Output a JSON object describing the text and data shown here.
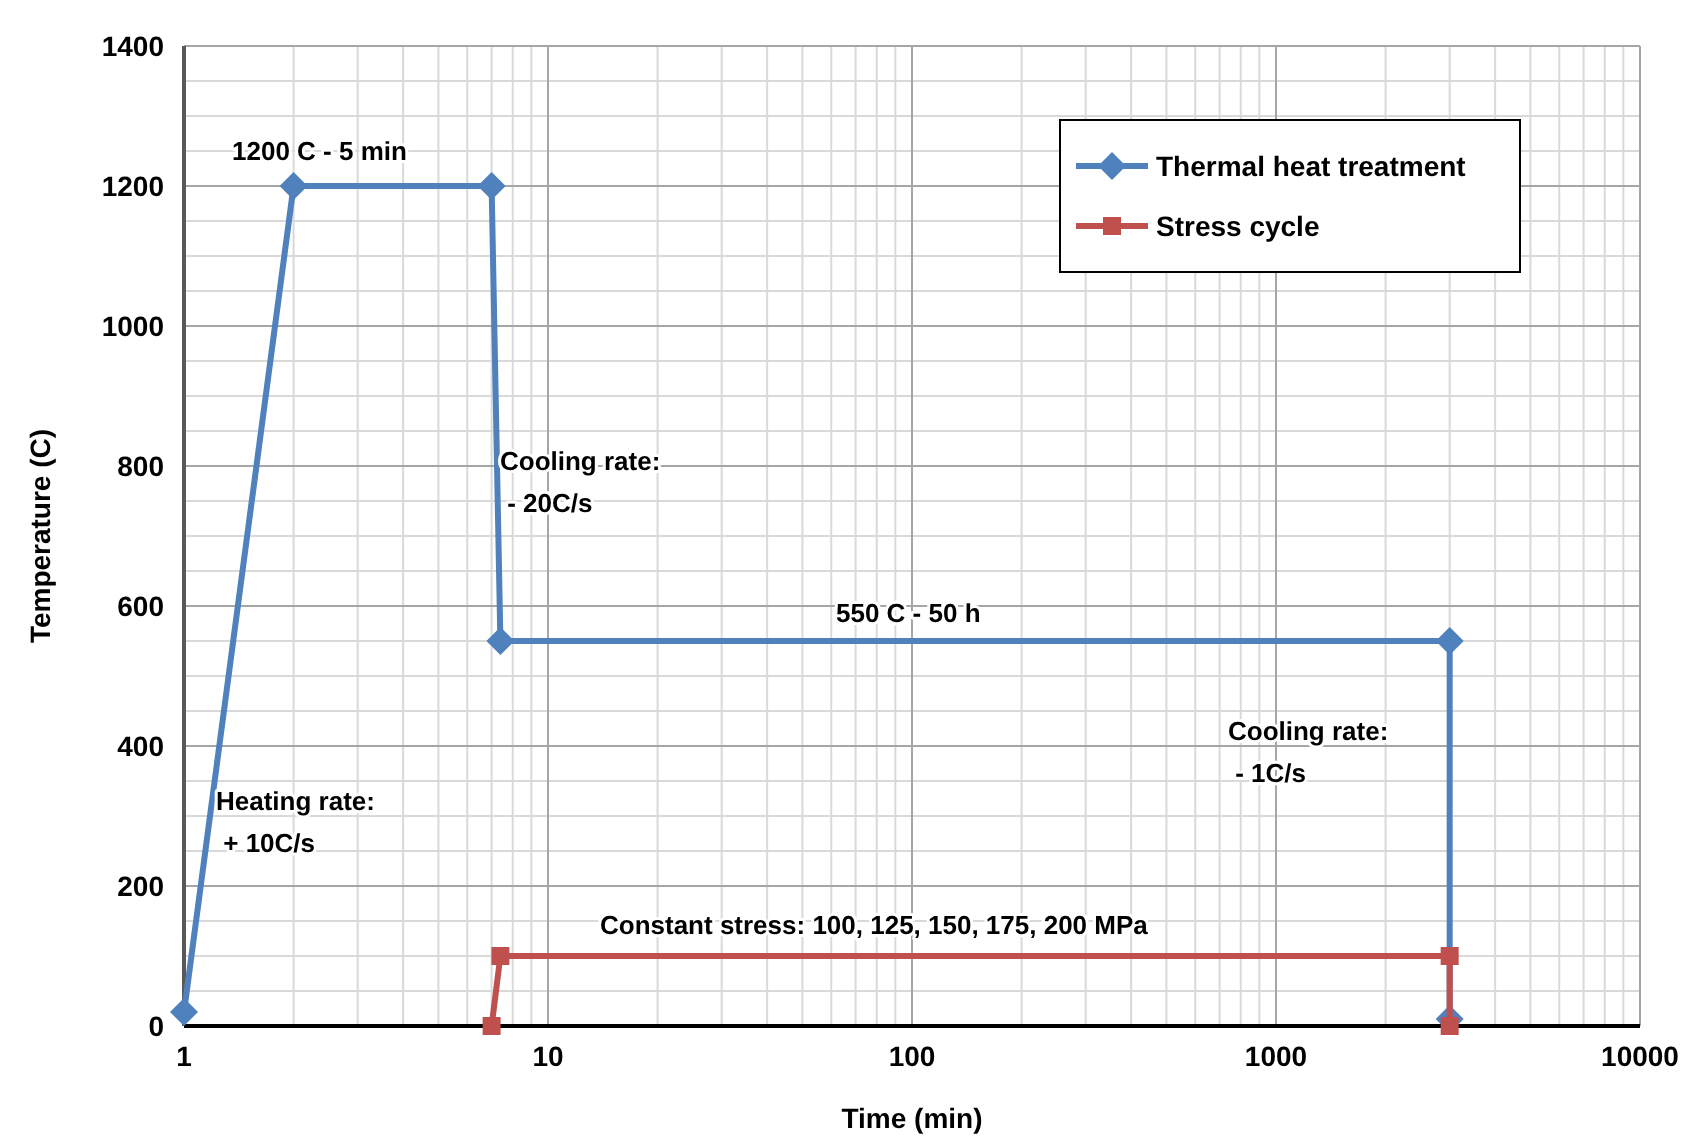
{
  "chart_data": {
    "type": "line",
    "xlabel": "Time (min)",
    "ylabel": "Temperature (C)",
    "log": "x",
    "xlim": [
      1,
      10000
    ],
    "xticks": [
      1,
      10,
      100,
      1000,
      10000
    ],
    "ylim": [
      0,
      1400
    ],
    "yticks": [
      0,
      200,
      400,
      600,
      800,
      1000,
      1200,
      1400
    ],
    "grid": true,
    "legend": "top right",
    "series": [
      {
        "name": "Thermal heat treatment",
        "color": "#4f81bd",
        "marker": "diamond",
        "x": [
          1,
          2,
          7,
          7.4,
          3000,
          3000
        ],
        "values": [
          20,
          1200,
          1200,
          550,
          550,
          10
        ]
      },
      {
        "name": "Stress cycle",
        "color": "#c0504d",
        "marker": "square",
        "x": [
          7,
          7.4,
          3000,
          3000
        ],
        "values": [
          0,
          100,
          100,
          0
        ]
      }
    ],
    "annotations": [
      "1200 C - 5 min",
      "Cooling rate:\n - 20C/s",
      "550 C - 50 h",
      "Heating rate:\n + 10C/s",
      "Cooling rate:\n - 1C/s",
      "Constant stress: 100, 125, 150, 175, 200 MPa"
    ]
  }
}
